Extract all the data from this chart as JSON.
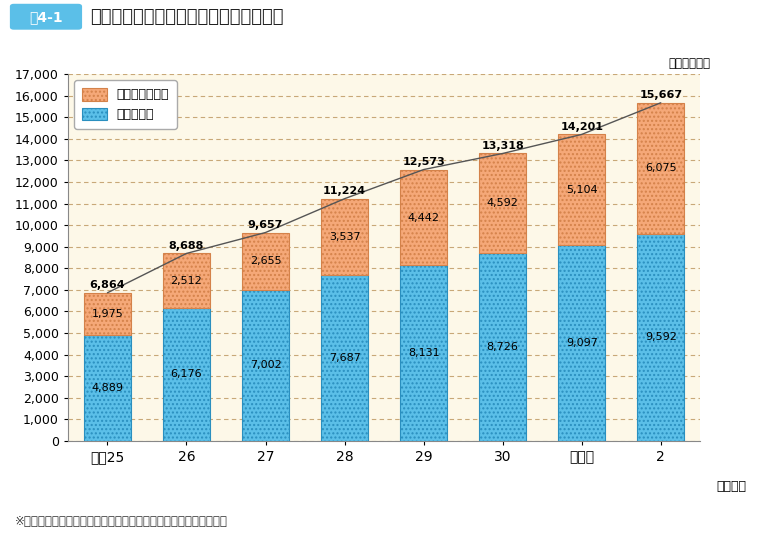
{
  "title_prefix": "図4-1",
  "title_text": "年度別再任用職員数（給与法適用職員）",
  "unit_label": "（単位：人）",
  "xlabel": "（年度）",
  "categories": [
    "平成25",
    "26",
    "27",
    "28",
    "29",
    "30",
    "令和元",
    "2"
  ],
  "fulltime": [
    1975,
    2512,
    2655,
    3537,
    4442,
    4592,
    5104,
    6075
  ],
  "parttime": [
    4889,
    6176,
    7002,
    7687,
    8131,
    8726,
    9097,
    9592
  ],
  "totals": [
    6864,
    8688,
    9657,
    11224,
    12573,
    13318,
    14201,
    15667
  ],
  "fulltime_color": "#f5a878",
  "fulltime_edge": "#d4824a",
  "parttime_color": "#5bbfe8",
  "parttime_edge": "#2a8fbf",
  "line_color": "#555555",
  "bg_color": "#fdf8e8",
  "grid_color": "#c8a878",
  "ylim": [
    0,
    17000
  ],
  "yticks": [
    0,
    1000,
    2000,
    3000,
    4000,
    5000,
    6000,
    7000,
    8000,
    9000,
    10000,
    11000,
    12000,
    13000,
    14000,
    15000,
    16000,
    17000
  ],
  "legend_fulltime": "フルタイム勤務",
  "legend_parttime": "短時間勤務",
  "footnote": "※令和２年度の数値は、令和２年５月現在の値で、予定者を含む。",
  "title_box_color": "#5bbfe8",
  "bar_width": 0.6
}
